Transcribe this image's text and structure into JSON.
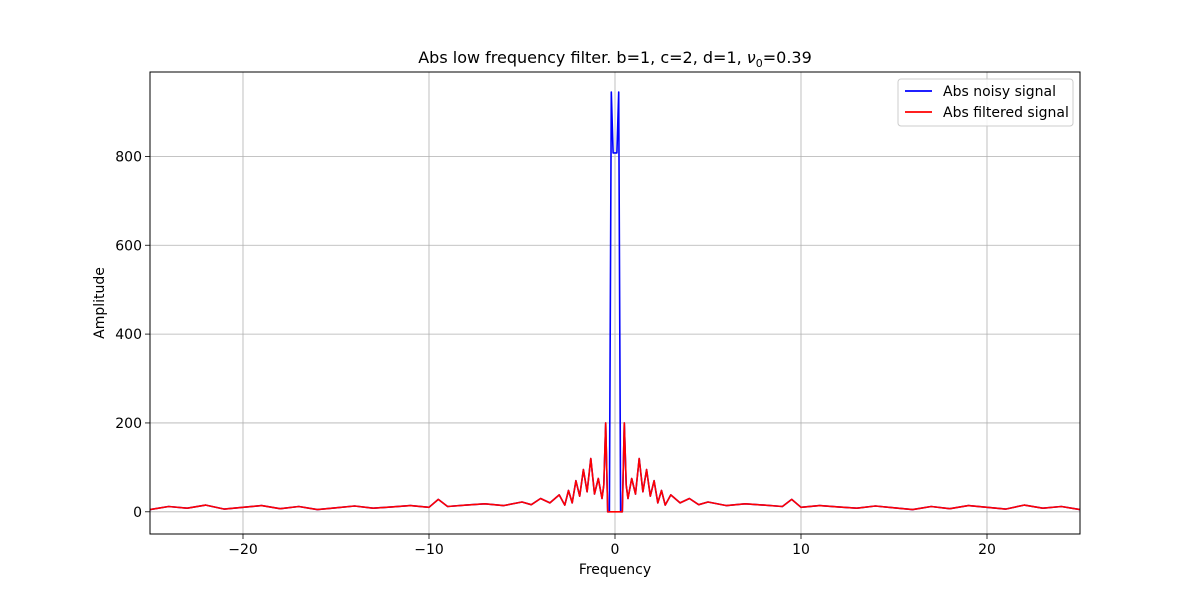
{
  "chart_data": {
    "type": "line",
    "title": {
      "prefix": "Abs low frequency filter. b=1, c=2, d=1, ",
      "symbol": "ν",
      "subscript": "0",
      "suffix": "=0.39"
    },
    "xlabel": "Frequency",
    "ylabel": "Amplitude",
    "xlim": [
      -25,
      25
    ],
    "ylim": [
      -50,
      990
    ],
    "xticks": [
      -20,
      -10,
      0,
      10,
      20
    ],
    "xtick_labels": [
      "−20",
      "−10",
      "0",
      "10",
      "20"
    ],
    "yticks": [
      0,
      200,
      400,
      600,
      800
    ],
    "ytick_labels": [
      "0",
      "200",
      "400",
      "600",
      "800"
    ],
    "grid": true,
    "legend_position": "top-right",
    "series": [
      {
        "name": "Abs noisy signal",
        "color": "#0000ff",
        "x": [
          -25,
          -24,
          -23,
          -22,
          -21,
          -20,
          -19,
          -18,
          -17,
          -16,
          -15,
          -14,
          -13,
          -12,
          -11,
          -10,
          -9.5,
          -9,
          -8,
          -7,
          -6,
          -5,
          -4.5,
          -4,
          -3.5,
          -3,
          -2.7,
          -2.5,
          -2.3,
          -2.1,
          -1.9,
          -1.7,
          -1.5,
          -1.3,
          -1.1,
          -0.9,
          -0.7,
          -0.6,
          -0.5,
          -0.39,
          -0.3,
          -0.2,
          -0.1,
          0,
          0.1,
          0.2,
          0.3,
          0.39,
          0.5,
          0.6,
          0.7,
          0.9,
          1.1,
          1.3,
          1.5,
          1.7,
          1.9,
          2.1,
          2.3,
          2.5,
          2.7,
          3,
          3.5,
          4,
          4.5,
          5,
          6,
          7,
          8,
          9,
          9.5,
          10,
          11,
          12,
          13,
          14,
          15,
          16,
          17,
          18,
          19,
          20,
          21,
          22,
          23,
          24,
          25
        ],
        "y": [
          5,
          12,
          8,
          15,
          6,
          10,
          14,
          7,
          12,
          5,
          9,
          13,
          8,
          11,
          14,
          10,
          28,
          12,
          15,
          18,
          14,
          22,
          16,
          30,
          20,
          38,
          15,
          48,
          20,
          70,
          35,
          95,
          45,
          120,
          40,
          75,
          30,
          60,
          200,
          0,
          0,
          945,
          808,
          808,
          808,
          945,
          0,
          0,
          200,
          60,
          30,
          75,
          40,
          120,
          45,
          95,
          35,
          70,
          20,
          48,
          15,
          38,
          20,
          30,
          16,
          22,
          14,
          18,
          15,
          12,
          28,
          10,
          14,
          11,
          8,
          13,
          9,
          5,
          12,
          7,
          14,
          10,
          6,
          15,
          8,
          12,
          5
        ]
      },
      {
        "name": "Abs filtered signal",
        "color": "#ff0000",
        "x": [
          -25,
          -24,
          -23,
          -22,
          -21,
          -20,
          -19,
          -18,
          -17,
          -16,
          -15,
          -14,
          -13,
          -12,
          -11,
          -10,
          -9.5,
          -9,
          -8,
          -7,
          -6,
          -5,
          -4.5,
          -4,
          -3.5,
          -3,
          -2.7,
          -2.5,
          -2.3,
          -2.1,
          -1.9,
          -1.7,
          -1.5,
          -1.3,
          -1.1,
          -0.9,
          -0.7,
          -0.6,
          -0.5,
          -0.39,
          0.39,
          0.5,
          0.6,
          0.7,
          0.9,
          1.1,
          1.3,
          1.5,
          1.7,
          1.9,
          2.1,
          2.3,
          2.5,
          2.7,
          3,
          3.5,
          4,
          4.5,
          5,
          6,
          7,
          8,
          9,
          9.5,
          10,
          11,
          12,
          13,
          14,
          15,
          16,
          17,
          18,
          19,
          20,
          21,
          22,
          23,
          24,
          25
        ],
        "y": [
          5,
          12,
          8,
          15,
          6,
          10,
          14,
          7,
          12,
          5,
          9,
          13,
          8,
          11,
          14,
          10,
          28,
          12,
          15,
          18,
          14,
          22,
          16,
          30,
          20,
          38,
          15,
          48,
          20,
          70,
          35,
          95,
          45,
          120,
          40,
          75,
          30,
          60,
          200,
          0,
          0,
          200,
          60,
          30,
          75,
          40,
          120,
          45,
          95,
          35,
          70,
          20,
          48,
          15,
          38,
          20,
          30,
          16,
          22,
          14,
          18,
          15,
          12,
          28,
          10,
          14,
          11,
          8,
          13,
          9,
          5,
          12,
          7,
          14,
          10,
          6,
          15,
          8,
          12,
          5
        ]
      }
    ]
  }
}
